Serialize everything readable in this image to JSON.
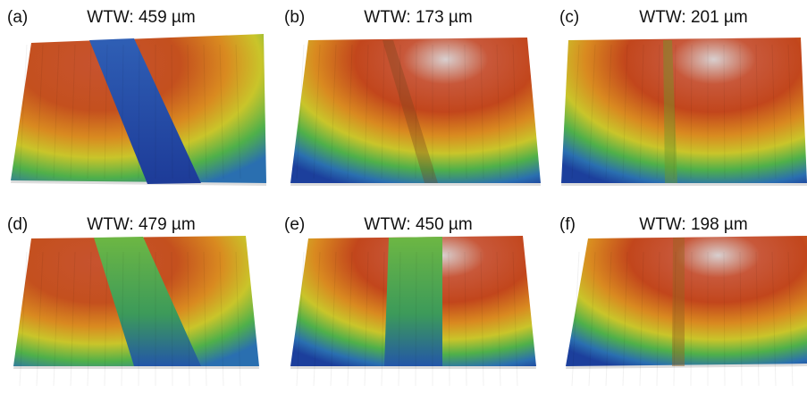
{
  "panels": [
    {
      "label": "(a)",
      "title": "WTW: 459 µm"
    },
    {
      "label": "(b)",
      "title": "WTW: 173 µm"
    },
    {
      "label": "(c)",
      "title": "WTW: 201 µm"
    },
    {
      "label": "(d)",
      "title": "WTW: 479 µm"
    },
    {
      "label": "(e)",
      "title": "WTW: 450 µm"
    },
    {
      "label": "(f)",
      "title": "WTW: 198 µm"
    }
  ]
}
